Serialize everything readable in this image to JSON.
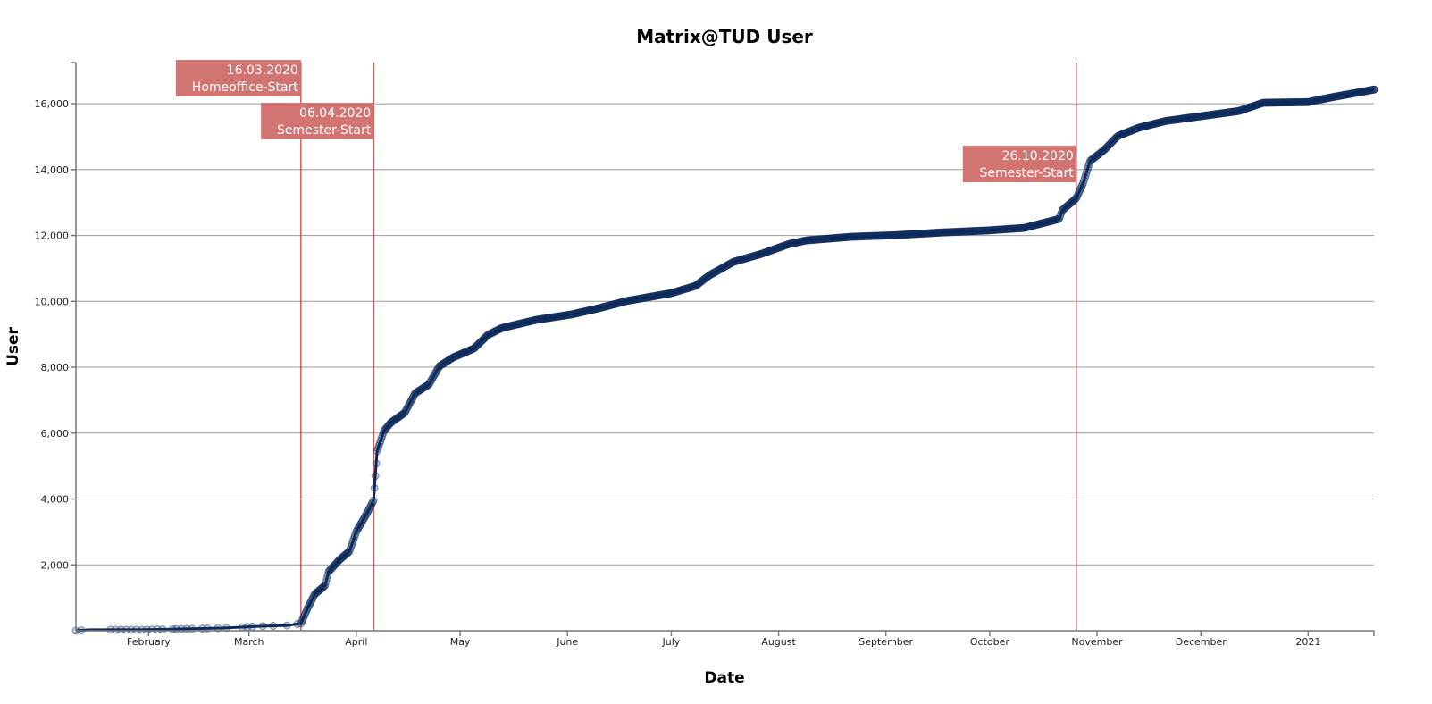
{
  "chart_data": {
    "type": "line",
    "title": "Matrix@TUD User",
    "xlabel": "Date",
    "ylabel": "User",
    "xlim": [
      "2020-01-11",
      "2021-01-20"
    ],
    "ylim": [
      0,
      17250
    ],
    "grid": {
      "y": true,
      "x": false
    },
    "x_tick_labels": [
      "February",
      "March",
      "April",
      "May",
      "June",
      "July",
      "August",
      "September",
      "October",
      "November",
      "December",
      "2021"
    ],
    "x_tick_dates": [
      "2020-02-01",
      "2020-03-01",
      "2020-04-01",
      "2020-05-01",
      "2020-06-01",
      "2020-07-01",
      "2020-08-01",
      "2020-09-01",
      "2020-10-01",
      "2020-11-01",
      "2020-12-01",
      "2021-01-01"
    ],
    "y_ticks": [
      2000,
      4000,
      6000,
      8000,
      10000,
      12000,
      14000,
      16000
    ],
    "y_tick_labels": [
      "2,000",
      "4,000",
      "6,000",
      "8,000",
      "10,000",
      "12,000",
      "14,000",
      "16,000"
    ],
    "colors": {
      "series": "#0d2a5c",
      "annotation_box": "#d27472",
      "marker_line": "#c83232",
      "marker_line_dark": "#7b2525"
    },
    "series": [
      {
        "points": [
          [
            "2020-01-11",
            0
          ],
          [
            "2020-01-15",
            30
          ],
          [
            "2020-01-30",
            30
          ],
          [
            "2020-02-09",
            50
          ],
          [
            "2020-02-22",
            80
          ],
          [
            "2020-03-05",
            140
          ],
          [
            "2020-03-12",
            160
          ],
          [
            "2020-03-16",
            220
          ],
          [
            "2020-03-18",
            700
          ],
          [
            "2020-03-20",
            1110
          ],
          [
            "2020-03-23",
            1380
          ],
          [
            "2020-03-24",
            1790
          ],
          [
            "2020-03-27",
            2140
          ],
          [
            "2020-03-30",
            2410
          ],
          [
            "2020-04-01",
            3010
          ],
          [
            "2020-04-04",
            3550
          ],
          [
            "2020-04-06",
            3960
          ],
          [
            "2020-04-07",
            5450
          ],
          [
            "2020-04-09",
            6070
          ],
          [
            "2020-04-11",
            6320
          ],
          [
            "2020-04-15",
            6620
          ],
          [
            "2020-04-18",
            7210
          ],
          [
            "2020-04-22",
            7480
          ],
          [
            "2020-04-25",
            8030
          ],
          [
            "2020-04-29",
            8300
          ],
          [
            "2020-05-05",
            8570
          ],
          [
            "2020-05-09",
            8980
          ],
          [
            "2020-05-13",
            9190
          ],
          [
            "2020-05-23",
            9440
          ],
          [
            "2020-06-02",
            9600
          ],
          [
            "2020-06-10",
            9790
          ],
          [
            "2020-06-18",
            10010
          ],
          [
            "2020-07-01",
            10250
          ],
          [
            "2020-07-08",
            10470
          ],
          [
            "2020-07-12",
            10790
          ],
          [
            "2020-07-19",
            11200
          ],
          [
            "2020-07-27",
            11440
          ],
          [
            "2020-08-04",
            11740
          ],
          [
            "2020-08-09",
            11850
          ],
          [
            "2020-08-22",
            11960
          ],
          [
            "2020-09-04",
            12010
          ],
          [
            "2020-09-17",
            12090
          ],
          [
            "2020-09-30",
            12150
          ],
          [
            "2020-10-11",
            12230
          ],
          [
            "2020-10-18",
            12420
          ],
          [
            "2020-10-21",
            12500
          ],
          [
            "2020-10-22",
            12770
          ],
          [
            "2020-10-26",
            13130
          ],
          [
            "2020-10-28",
            13590
          ],
          [
            "2020-10-30",
            14260
          ],
          [
            "2020-11-03",
            14590
          ],
          [
            "2020-11-07",
            15020
          ],
          [
            "2020-11-13",
            15270
          ],
          [
            "2020-11-21",
            15480
          ],
          [
            "2020-12-01",
            15620
          ],
          [
            "2020-12-12",
            15780
          ],
          [
            "2020-12-19",
            16030
          ],
          [
            "2021-01-01",
            16050
          ],
          [
            "2021-01-06",
            16160
          ],
          [
            "2021-01-20",
            16430
          ]
        ]
      }
    ],
    "annotations": [
      {
        "date": "2020-03-16",
        "line1": "16.03.2020",
        "line2": "Homeoffice-Start",
        "line_color": "#c83232"
      },
      {
        "date": "2020-04-06",
        "line1": "06.04.2020",
        "line2": "Semester-Start",
        "line_color": "#c83232"
      },
      {
        "date": "2020-10-26",
        "line1": "26.10.2020",
        "line2": "Semester-Start",
        "line_color": "#7b2525"
      }
    ]
  }
}
